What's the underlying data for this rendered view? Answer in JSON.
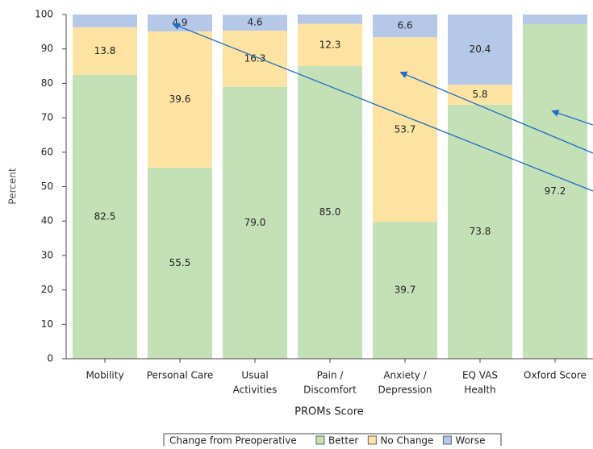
{
  "chart_data": {
    "type": "stacked-bar",
    "categories": [
      [
        "Mobility"
      ],
      [
        "Personal Care"
      ],
      [
        "Usual",
        "Activities"
      ],
      [
        "Pain /",
        "Discomfort"
      ],
      [
        "Anxiety /",
        "Depression"
      ],
      [
        "EQ VAS",
        "Health"
      ],
      [
        "Oxford Score"
      ]
    ],
    "series": [
      {
        "name": "Better",
        "color": "#c4e0b6",
        "values": [
          82.5,
          55.5,
          79.0,
          85.0,
          39.7,
          73.8,
          97.2
        ],
        "value_labels": [
          "82.5",
          "55.5",
          "79.0",
          "85.0",
          "39.7",
          "73.8",
          "97.2"
        ]
      },
      {
        "name": "No Change",
        "color": "#fde3a2",
        "values": [
          13.8,
          39.6,
          16.3,
          12.3,
          53.7,
          5.8,
          0
        ],
        "value_labels": [
          "13.8",
          "39.6",
          "16.3",
          "12.3",
          "53.7",
          "5.8",
          null
        ]
      },
      {
        "name": "Worse",
        "color": "#b5c8e8",
        "values": [
          3.7,
          4.9,
          4.6,
          2.7,
          6.6,
          20.4,
          2.8
        ],
        "value_labels": [
          null,
          "4.9",
          "4.6",
          null,
          "6.6",
          "20.4",
          null
        ]
      }
    ],
    "ylim": [
      0,
      100
    ],
    "yticks": [
      0,
      10,
      20,
      30,
      40,
      50,
      60,
      70,
      80,
      90,
      100
    ],
    "y_label": "Percent",
    "x_label": "PROMs Score",
    "legend_title": "Change from Preoperative",
    "legend": "bottom"
  }
}
